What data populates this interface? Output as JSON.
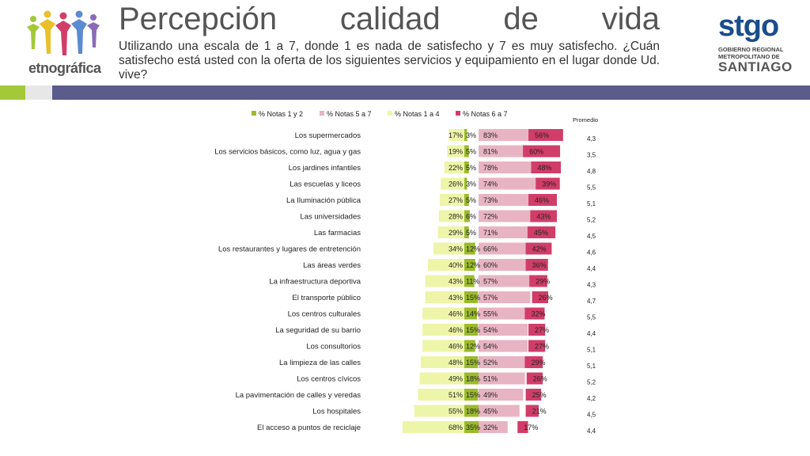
{
  "header": {
    "title": "Percepción calidad de vida",
    "subtitle": "Utilizando una escala de 1 a 7, donde 1 es nada de satisfecho y 7 es muy satisfecho. ¿Cuán satisfecho está usted con la oferta de los siguientes servicios y equipamiento en el lugar donde Ud. vive?",
    "logo_left": "etnográfica",
    "logo_right": "stgo",
    "logo_right_sub1": "GOBIERNO REGIONAL",
    "logo_right_sub2": "METROPOLITANO DE",
    "logo_right_sub3": "SANTIAGO"
  },
  "colors": {
    "notas_1_2": "#9bbb2c",
    "notas_5_7": "#e8b4c4",
    "notas_1_4": "#eef5a8",
    "notas_6_7": "#d13d69",
    "band_green": "#a3c93a",
    "band_blue": "#5b5b8c"
  },
  "chart_data": {
    "type": "bar",
    "subtype": "stacked-diverging-horizontal",
    "legend": [
      "% Notas 1 y 2",
      "% Notas 5 a 7",
      "% Notas 1 a 4",
      "% Notas 6 a 7"
    ],
    "legend_position": "top",
    "promedio_label": "Promedio",
    "categories": [
      "Los supermercados",
      "Los servicios básicos, como luz, agua y gas",
      "Los jardines infantiles",
      "Las escuelas y liceos",
      "La Iluminación pública",
      "Las universidades",
      "Las farmacias",
      "Los restaurantes y lugares de entretención",
      "Las áreas verdes",
      "La infraestructura deportiva",
      "El transporte público",
      "Los centros culturales",
      "La seguridad de su barrio",
      "Los consultorios",
      "La limpieza de las calles",
      "Los centros cívicos",
      "La pavimentación de calles y veredas",
      "Los hospitales",
      "El acceso a puntos de reciclaje"
    ],
    "series": [
      {
        "name": "% Notas 1 a 4",
        "values": [
          17,
          19,
          22,
          26,
          27,
          28,
          29,
          34,
          40,
          43,
          43,
          46,
          46,
          46,
          48,
          49,
          51,
          55,
          68
        ]
      },
      {
        "name": "% Notas 1 y 2",
        "values": [
          3,
          5,
          5,
          3,
          5,
          6,
          5,
          12,
          12,
          11,
          15,
          14,
          15,
          12,
          15,
          18,
          15,
          18,
          35
        ]
      },
      {
        "name": "% Notas 5 a 7",
        "values": [
          83,
          81,
          78,
          74,
          73,
          72,
          71,
          66,
          60,
          57,
          57,
          55,
          54,
          54,
          52,
          51,
          49,
          45,
          32
        ]
      },
      {
        "name": "% Notas 6 a 7",
        "values": [
          56,
          60,
          48,
          39,
          46,
          43,
          45,
          42,
          36,
          29,
          26,
          32,
          27,
          27,
          29,
          26,
          25,
          21,
          17
        ]
      }
    ],
    "value_suffix": "%",
    "promedio": [
      "4,3",
      "3,5",
      "4,8",
      "5,5",
      "5,1",
      "5,2",
      "4,5",
      "4,6",
      "4,4",
      "4,3",
      "4,7",
      "5,5",
      "4,4",
      "5,1",
      "5,1",
      "5,2",
      "4,2",
      "4,5",
      "4,4"
    ]
  }
}
